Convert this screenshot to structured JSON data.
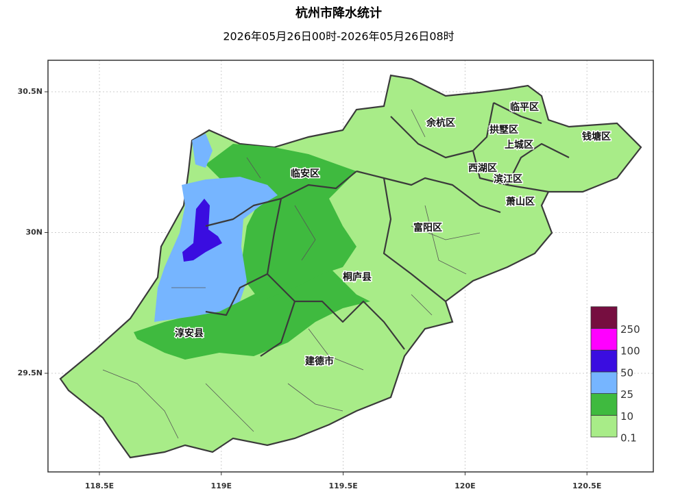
{
  "title": "杭州市降水统计",
  "subtitle": "2026年05月26日00时-2026年05月26日08时",
  "x_ticks": [
    {
      "value": 118.5,
      "label": "118.5E"
    },
    {
      "value": 119,
      "label": "119E"
    },
    {
      "value": 119.5,
      "label": "119.5E"
    },
    {
      "value": 120,
      "label": "120E"
    },
    {
      "value": 120.5,
      "label": "120.5E"
    }
  ],
  "y_ticks": [
    {
      "value": 30.5,
      "label": "30.5N"
    },
    {
      "value": 30,
      "label": "30N"
    },
    {
      "value": 29.5,
      "label": "29.5N"
    }
  ],
  "districts": [
    "临平区",
    "余杭区",
    "拱墅区",
    "上城区",
    "钱塘区",
    "临安区",
    "西湖区",
    "滨江区",
    "萧山区",
    "富阳区",
    "桐庐县",
    "淳安县",
    "建德市"
  ],
  "legend": {
    "levels": [
      0.1,
      10,
      25,
      50,
      100,
      250
    ],
    "colors": [
      "#a8ec88",
      "#3fba3f",
      "#76b5ff",
      "#3a0de0",
      "#ff00ff",
      "#760e40"
    ]
  }
}
